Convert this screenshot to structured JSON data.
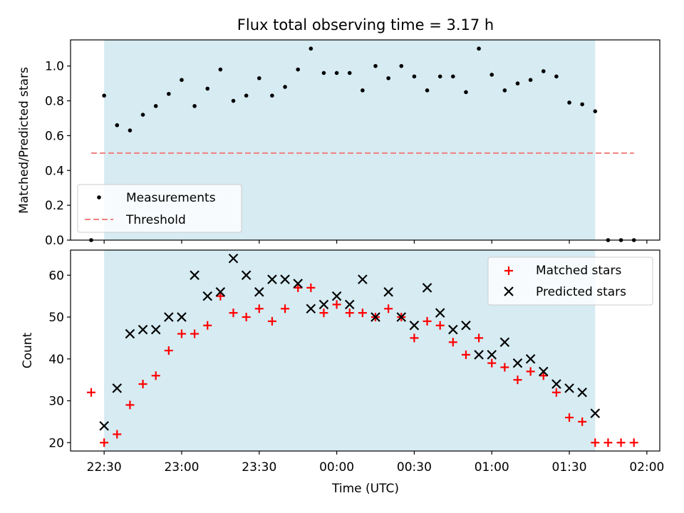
{
  "figure_title": "Flux total observing time = 3.17 h",
  "colors": {
    "shade": "#add8e6",
    "measurement": "#000000",
    "threshold": "#f08080",
    "matched": "#ff0000",
    "predicted": "#000000"
  },
  "x_ticks": [
    "22:30",
    "23:00",
    "23:30",
    "00:00",
    "00:30",
    "01:00",
    "01:30",
    "02:00"
  ],
  "chart_data": [
    {
      "type": "scatter",
      "ylabel": "Matched/Predicted stars",
      "ylim": [
        0,
        1.15
      ],
      "yticks": [
        "0.0",
        "0.2",
        "0.4",
        "0.6",
        "0.8",
        "1.0"
      ],
      "x_unit": "time (UTC)",
      "x": [
        "22:25",
        "22:30",
        "22:35",
        "22:40",
        "22:45",
        "22:50",
        "22:55",
        "23:00",
        "23:05",
        "23:10",
        "23:15",
        "23:20",
        "23:25",
        "23:30",
        "23:35",
        "23:40",
        "23:45",
        "23:50",
        "23:55",
        "00:00",
        "00:05",
        "00:10",
        "00:15",
        "00:20",
        "00:25",
        "00:30",
        "00:35",
        "00:40",
        "00:45",
        "00:50",
        "00:55",
        "01:00",
        "01:05",
        "01:10",
        "01:15",
        "01:20",
        "01:25",
        "01:30",
        "01:35",
        "01:40",
        "01:45",
        "01:50",
        "01:55"
      ],
      "xlim": [
        "22:17",
        "02:05"
      ],
      "shaded_span": [
        "22:30",
        "01:40"
      ],
      "series": [
        {
          "name": "Measurements",
          "marker": "dot",
          "values": [
            0.0,
            0.83,
            0.66,
            0.63,
            0.72,
            0.77,
            0.84,
            0.92,
            0.77,
            0.87,
            0.98,
            0.8,
            0.83,
            0.93,
            0.83,
            0.88,
            0.98,
            1.1,
            0.96,
            0.96,
            0.96,
            0.86,
            1.0,
            0.93,
            1.0,
            0.94,
            0.86,
            0.94,
            0.94,
            0.85,
            1.1,
            0.95,
            0.86,
            0.9,
            0.92,
            0.97,
            0.94,
            0.79,
            0.78,
            0.74,
            0.0,
            0.0,
            0.0
          ]
        }
      ],
      "threshold": {
        "name": "Threshold",
        "value": 0.5,
        "x_range": [
          "22:25",
          "01:55"
        ]
      },
      "legend": "lower-left"
    },
    {
      "type": "scatter",
      "xlabel": "Time (UTC)",
      "ylabel": "Count",
      "ylim": [
        18,
        66
      ],
      "yticks": [
        "20",
        "30",
        "40",
        "50",
        "60"
      ],
      "x": [
        "22:25",
        "22:30",
        "22:35",
        "22:40",
        "22:45",
        "22:50",
        "22:55",
        "23:00",
        "23:05",
        "23:10",
        "23:15",
        "23:20",
        "23:25",
        "23:30",
        "23:35",
        "23:40",
        "23:45",
        "23:50",
        "23:55",
        "00:00",
        "00:05",
        "00:10",
        "00:15",
        "00:20",
        "00:25",
        "00:30",
        "00:35",
        "00:40",
        "00:45",
        "00:50",
        "00:55",
        "01:00",
        "01:05",
        "01:10",
        "01:15",
        "01:20",
        "01:25",
        "01:30",
        "01:35",
        "01:40",
        "01:45",
        "01:50",
        "01:55"
      ],
      "xlim": [
        "22:17",
        "02:05"
      ],
      "shaded_span": [
        "22:30",
        "01:40"
      ],
      "series": [
        {
          "name": "Matched stars",
          "marker": "plus",
          "values": [
            32,
            20,
            22,
            29,
            34,
            36,
            42,
            46,
            46,
            48,
            55,
            51,
            50,
            52,
            49,
            52,
            57,
            57,
            51,
            53,
            51,
            51,
            50,
            52,
            50,
            45,
            49,
            48,
            44,
            41,
            45,
            39,
            38,
            35,
            37,
            36,
            32,
            26,
            25,
            20,
            20,
            20,
            20
          ]
        },
        {
          "name": "Predicted stars",
          "marker": "x",
          "values": [
            null,
            24,
            33,
            46,
            47,
            47,
            50,
            50,
            60,
            55,
            56,
            64,
            60,
            56,
            59,
            59,
            58,
            52,
            53,
            55,
            53,
            59,
            50,
            56,
            50,
            48,
            57,
            51,
            47,
            48,
            41,
            41,
            44,
            39,
            40,
            37,
            34,
            33,
            32,
            27,
            null,
            null,
            null
          ]
        }
      ],
      "legend": "top-right"
    }
  ]
}
